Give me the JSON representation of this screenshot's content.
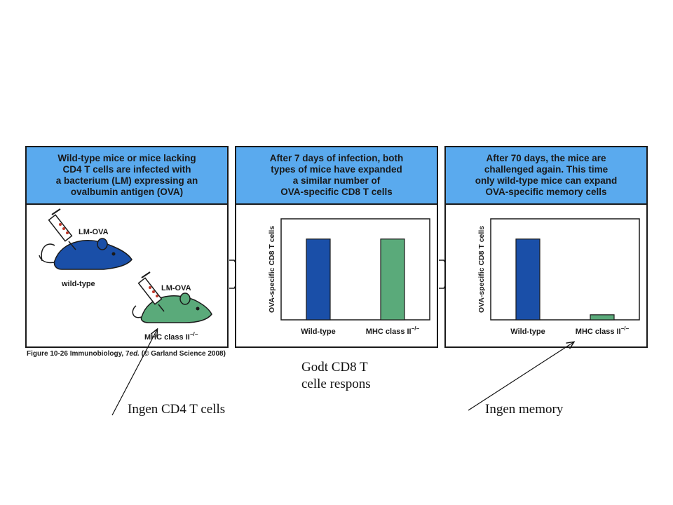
{
  "panels": [
    {
      "title_lines": [
        "Wild-type mice or mice lacking",
        "CD4 T cells are infected with",
        "a bacterium (LM) expressing an",
        "ovalbumin antigen (OVA)"
      ]
    },
    {
      "title_lines": [
        "After 7 days of infection, both",
        "types of mice have expanded",
        "a similar number of",
        "OVA-specific CD8 T cells"
      ]
    },
    {
      "title_lines": [
        "After 70 days, the mice are",
        "challenged again. This time",
        "only wild-type mice can expand",
        "OVA-specific memory cells"
      ]
    }
  ],
  "mice": {
    "syringe_label": "LM-OVA",
    "wild_type_label": "wild-type",
    "knockout_label": "MHC class II",
    "knockout_sup": "−/−"
  },
  "chart_data": [
    {
      "type": "bar",
      "ylabel": "OVA-specific CD8 T cells",
      "categories": [
        "Wild-type",
        "MHC class II"
      ],
      "category_sup": [
        "",
        "−/−"
      ],
      "values": [
        0.8,
        0.8
      ],
      "ylim": [
        0,
        1
      ],
      "colors": [
        "#1a4fa8",
        "#5aaa7a"
      ]
    },
    {
      "type": "bar",
      "ylabel": "OVA-specific CD8 T cells",
      "categories": [
        "Wild-type",
        "MHC class II"
      ],
      "category_sup": [
        "",
        "−/−"
      ],
      "values": [
        0.8,
        0.05
      ],
      "ylim": [
        0,
        1
      ],
      "colors": [
        "#1a4fa8",
        "#5aaa7a"
      ]
    }
  ],
  "caption": {
    "prefix": "Figure 10-26  Immunobiology, 7",
    "ed": "ed.",
    "suffix": " (© Garland Science 2008)"
  },
  "annotations": {
    "good_response_line1": "Godt CD8 T",
    "good_response_line2": "celle respons",
    "no_cd4": "Ingen CD4 T cells",
    "no_memory": "Ingen memory"
  },
  "colors": {
    "header": "#5aaaee",
    "wild_type_mouse": "#1a4fa8",
    "knockout_mouse": "#5aaa7a",
    "syringe_dots": "#c0392b"
  }
}
